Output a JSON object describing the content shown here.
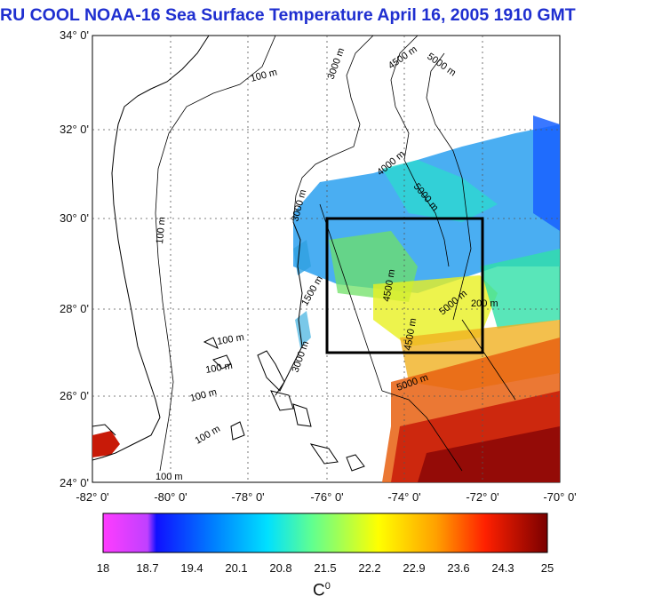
{
  "title": "RU COOL  NOAA-16 Sea Surface Temperature April 16, 2005 1910 GMT",
  "lat_labels": [
    "34° 0'",
    "32° 0'",
    "30° 0'",
    "28° 0'",
    "26° 0'",
    "24° 0'"
  ],
  "lon_labels": [
    "-82° 0'",
    "-80° 0'",
    "-78° 0'",
    "-76° 0'",
    "-74° 0'",
    "-72° 0'",
    "-70° 0'"
  ],
  "contour_labels": [
    "100 m",
    "100 m",
    "100 m",
    "100 m",
    "100 m",
    "100 m",
    "100 m",
    "3000 m",
    "3000 m",
    "3000 m",
    "4000 m",
    "4500 m",
    "4500 m",
    "5000 m",
    "5000 m",
    "5000 m",
    "5000 m",
    "4500 m",
    "1500 m",
    "200 m"
  ],
  "colorbar": {
    "ticks": [
      "18",
      "18.7",
      "19.4",
      "20.1",
      "20.8",
      "21.5",
      "22.2",
      "22.9",
      "23.6",
      "24.3",
      "25"
    ],
    "unit_base": "C",
    "unit_sup": "0",
    "min": 18,
    "max": 25,
    "colors": [
      "#ff3cff",
      "#8a2be2",
      "#0000ff",
      "#0078ff",
      "#00c8ff",
      "#00ffc8",
      "#7fff50",
      "#ffff00",
      "#ffa000",
      "#ff3000",
      "#c00000",
      "#7a0000"
    ]
  },
  "map": {
    "lat_range": [
      24,
      34
    ],
    "lon_range": [
      -82,
      -70
    ],
    "study_box": {
      "lon_min": -76,
      "lon_max": -72,
      "lat_min": 27,
      "lat_max": 30
    },
    "land_color": "#ffffff",
    "box_color": "#000000"
  }
}
